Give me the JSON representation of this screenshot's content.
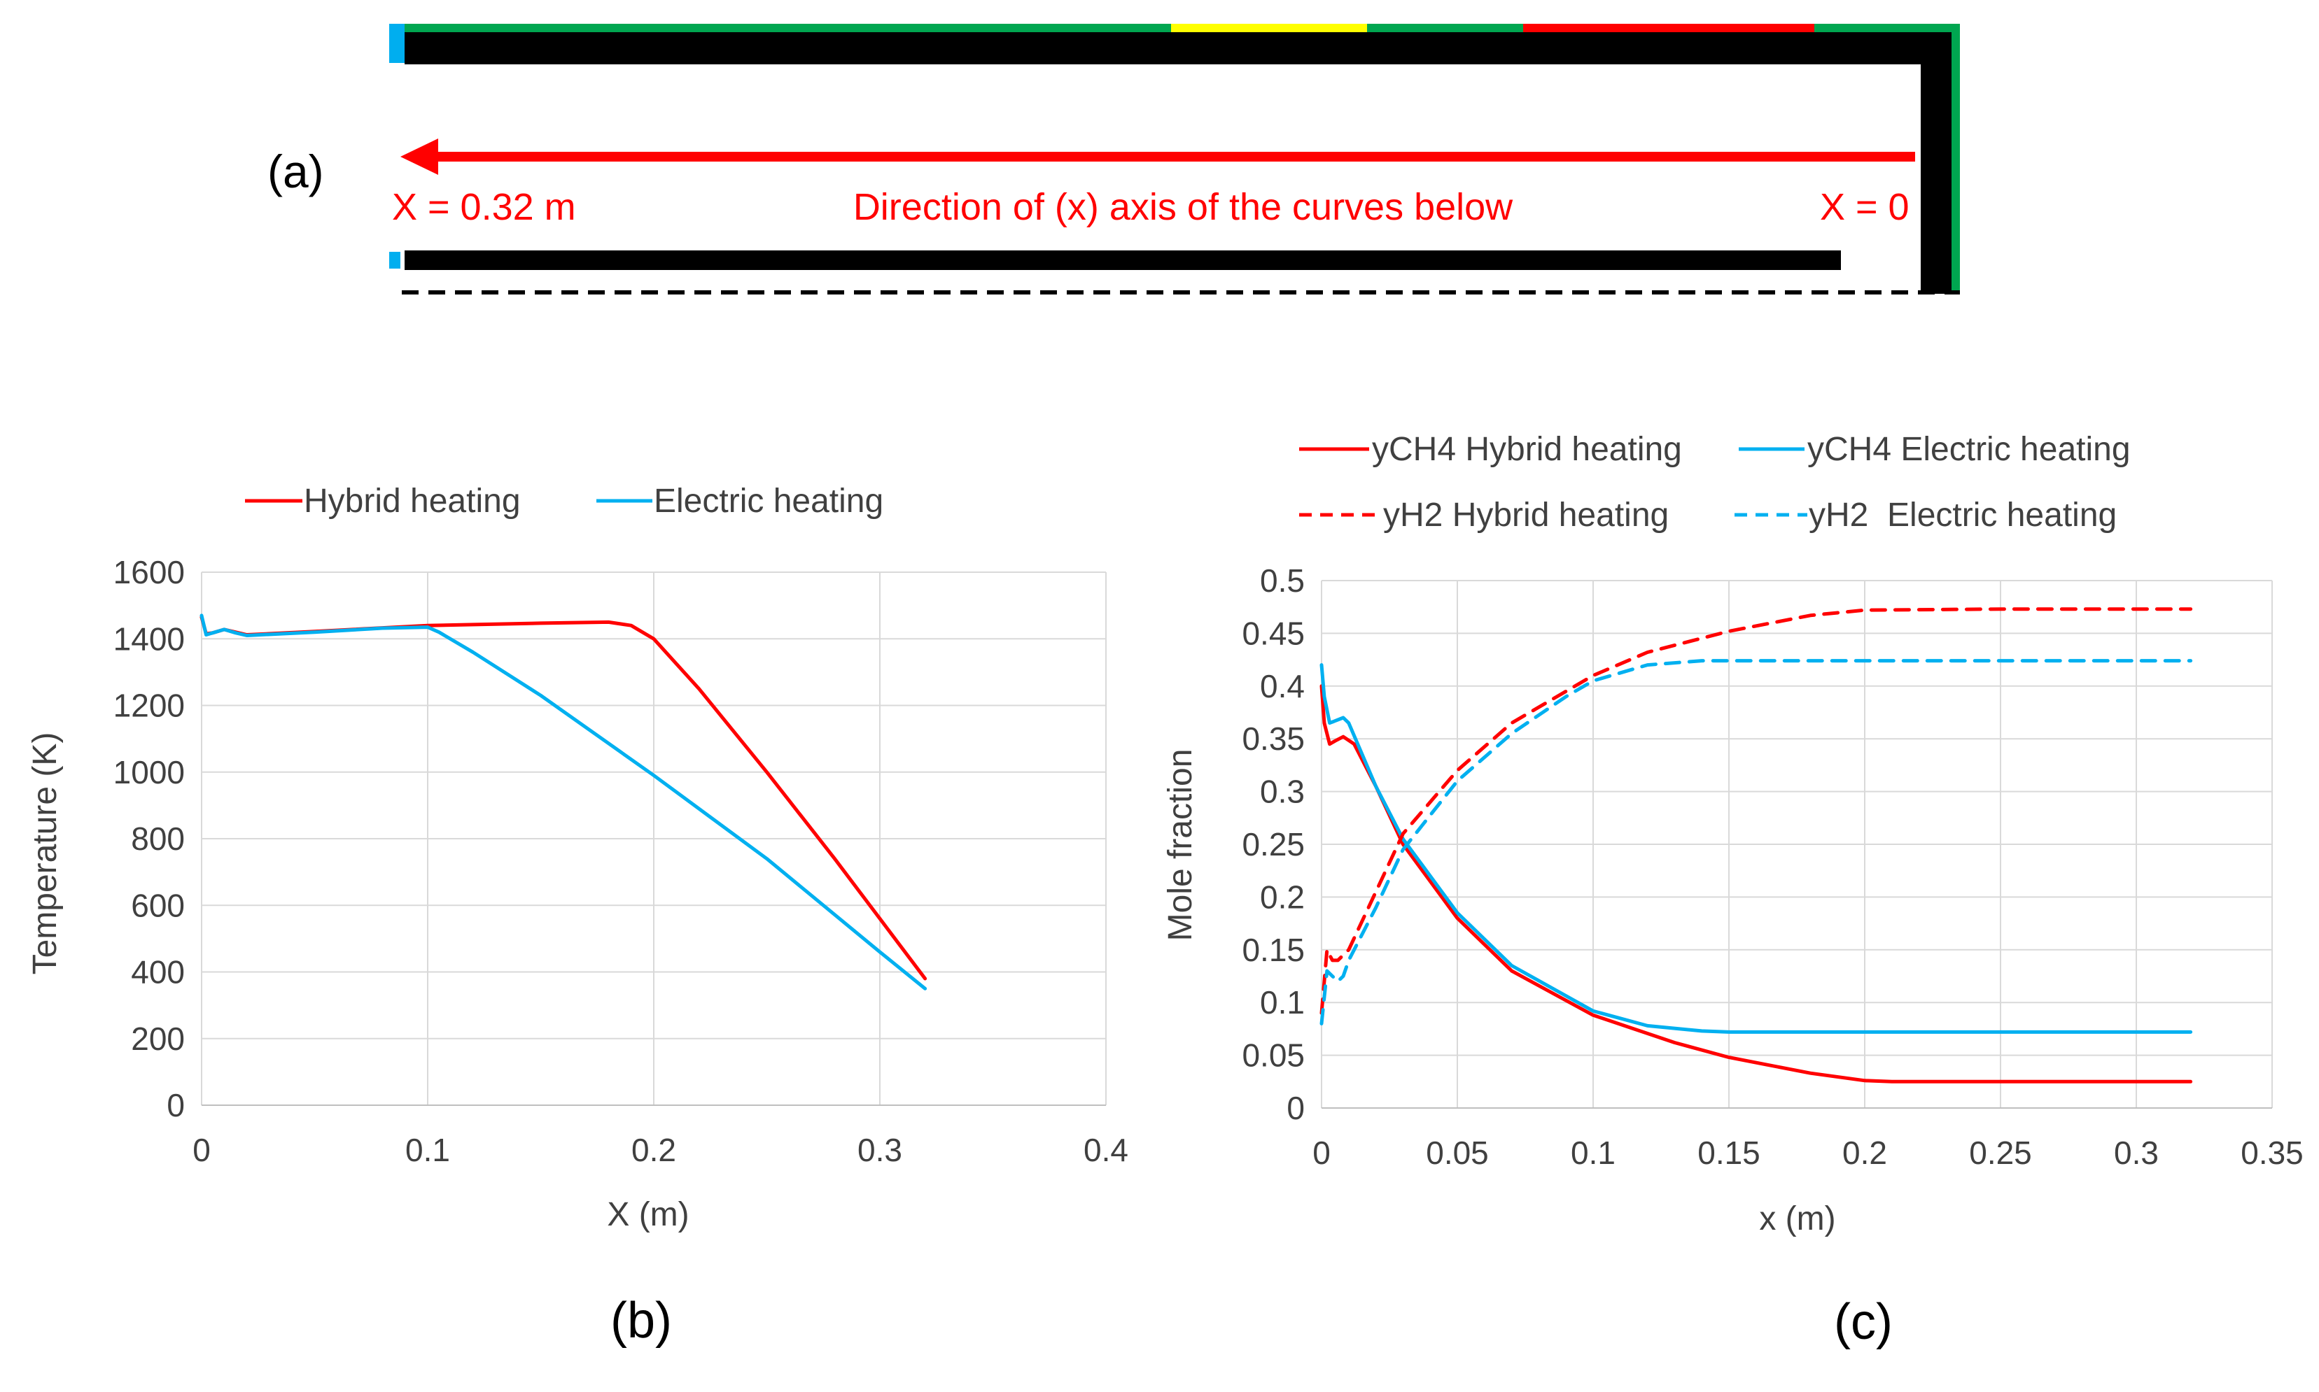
{
  "panel_a": {
    "label": "(a)",
    "x_left_label": "X = 0.32 m",
    "x_right_label": "X = 0",
    "direction_label": "Direction of (x)  axis of the curves below",
    "colors": {
      "outer_wall": "#00A650",
      "yellow_segment": "#FFFF00",
      "red_segment": "#FF0000",
      "inlet": "#00AEEF",
      "arrow": "#FF0000"
    }
  },
  "chart_data": [
    {
      "type": "line",
      "panel_label": "(b)",
      "title": "",
      "xlabel": "X (m)",
      "ylabel": "Temperature  (K)",
      "xlim": [
        0,
        0.4
      ],
      "ylim": [
        0,
        1600
      ],
      "xticks": [
        0,
        0.1,
        0.2,
        0.3,
        0.4
      ],
      "xtick_labels": [
        "0",
        "0.1",
        "0.2",
        "0.3",
        "0.4"
      ],
      "yticks": [
        0,
        200,
        400,
        600,
        800,
        1000,
        1200,
        1400,
        1600
      ],
      "ytick_labels": [
        "0",
        "200",
        "400",
        "600",
        "800",
        "1000",
        "1200",
        "1400",
        "1600"
      ],
      "grid": true,
      "legend": "top",
      "series": [
        {
          "name": "Hybrid heating",
          "color": "#FF0000",
          "dash": "solid",
          "x": [
            0,
            0.002,
            0.005,
            0.01,
            0.015,
            0.02,
            0.05,
            0.1,
            0.15,
            0.18,
            0.19,
            0.2,
            0.22,
            0.25,
            0.28,
            0.3,
            0.32
          ],
          "y": [
            1465,
            1415,
            1418,
            1428,
            1420,
            1412,
            1422,
            1440,
            1447,
            1450,
            1440,
            1400,
            1250,
            1000,
            740,
            560,
            380
          ]
        },
        {
          "name": "Electric heating",
          "color": "#00B0F0",
          "dash": "solid",
          "x": [
            0,
            0.002,
            0.005,
            0.01,
            0.015,
            0.02,
            0.05,
            0.08,
            0.1,
            0.105,
            0.12,
            0.15,
            0.2,
            0.25,
            0.3,
            0.32
          ],
          "y": [
            1470,
            1412,
            1418,
            1428,
            1418,
            1410,
            1420,
            1432,
            1435,
            1420,
            1360,
            1230,
            990,
            740,
            460,
            350
          ]
        }
      ]
    },
    {
      "type": "line",
      "panel_label": "(c)",
      "title": "",
      "xlabel": "x (m)",
      "ylabel": "Mole fraction",
      "xlim": [
        0,
        0.35
      ],
      "ylim": [
        0,
        0.5
      ],
      "xticks": [
        0,
        0.05,
        0.1,
        0.15,
        0.2,
        0.25,
        0.3,
        0.35
      ],
      "xtick_labels": [
        "0",
        "0.05",
        "0.1",
        "0.15",
        "0.2",
        "0.25",
        "0.3",
        "0.35"
      ],
      "yticks": [
        0,
        0.05,
        0.1,
        0.15,
        0.2,
        0.25,
        0.3,
        0.35,
        0.4,
        0.45,
        0.5
      ],
      "ytick_labels": [
        "0",
        "0.05",
        "0.1",
        "0.15",
        "0.2",
        "0.25",
        "0.3",
        "0.35",
        "0.4",
        "0.45",
        "0.5"
      ],
      "grid": true,
      "legend": "top",
      "series": [
        {
          "name": "yCH4 Hybrid heating",
          "color": "#FF0000",
          "dash": "solid",
          "x": [
            0,
            0.001,
            0.003,
            0.005,
            0.008,
            0.012,
            0.02,
            0.03,
            0.05,
            0.07,
            0.1,
            0.13,
            0.15,
            0.18,
            0.2,
            0.21,
            0.25,
            0.3,
            0.32
          ],
          "y": [
            0.4,
            0.365,
            0.345,
            0.348,
            0.352,
            0.345,
            0.305,
            0.25,
            0.18,
            0.13,
            0.088,
            0.062,
            0.048,
            0.033,
            0.026,
            0.025,
            0.025,
            0.025,
            0.025
          ]
        },
        {
          "name": "yCH4 Electric heating",
          "color": "#00B0F0",
          "dash": "solid",
          "x": [
            0,
            0.001,
            0.003,
            0.005,
            0.008,
            0.01,
            0.015,
            0.02,
            0.03,
            0.05,
            0.07,
            0.1,
            0.12,
            0.14,
            0.15,
            0.2,
            0.25,
            0.3,
            0.32
          ],
          "y": [
            0.42,
            0.39,
            0.365,
            0.367,
            0.37,
            0.365,
            0.335,
            0.305,
            0.255,
            0.185,
            0.135,
            0.092,
            0.078,
            0.073,
            0.072,
            0.072,
            0.072,
            0.072,
            0.072
          ]
        },
        {
          "name": "yH2 Hybrid heating",
          "color": "#FF0000",
          "dash": "dashed",
          "x": [
            0,
            0.002,
            0.004,
            0.006,
            0.01,
            0.02,
            0.03,
            0.05,
            0.07,
            0.1,
            0.12,
            0.15,
            0.18,
            0.2,
            0.25,
            0.3,
            0.32
          ],
          "y": [
            0.09,
            0.15,
            0.14,
            0.14,
            0.15,
            0.205,
            0.26,
            0.32,
            0.365,
            0.41,
            0.432,
            0.452,
            0.467,
            0.472,
            0.473,
            0.473,
            0.473
          ]
        },
        {
          "name": "yH2  Electric heating",
          "color": "#00B0F0",
          "dash": "dashed",
          "x": [
            0,
            0.002,
            0.004,
            0.006,
            0.008,
            0.01,
            0.02,
            0.03,
            0.05,
            0.07,
            0.09,
            0.1,
            0.12,
            0.14,
            0.15,
            0.2,
            0.25,
            0.3,
            0.32
          ],
          "y": [
            0.08,
            0.13,
            0.125,
            0.12,
            0.125,
            0.14,
            0.19,
            0.245,
            0.31,
            0.355,
            0.39,
            0.405,
            0.42,
            0.424,
            0.424,
            0.424,
            0.424,
            0.424,
            0.424
          ]
        }
      ]
    }
  ]
}
